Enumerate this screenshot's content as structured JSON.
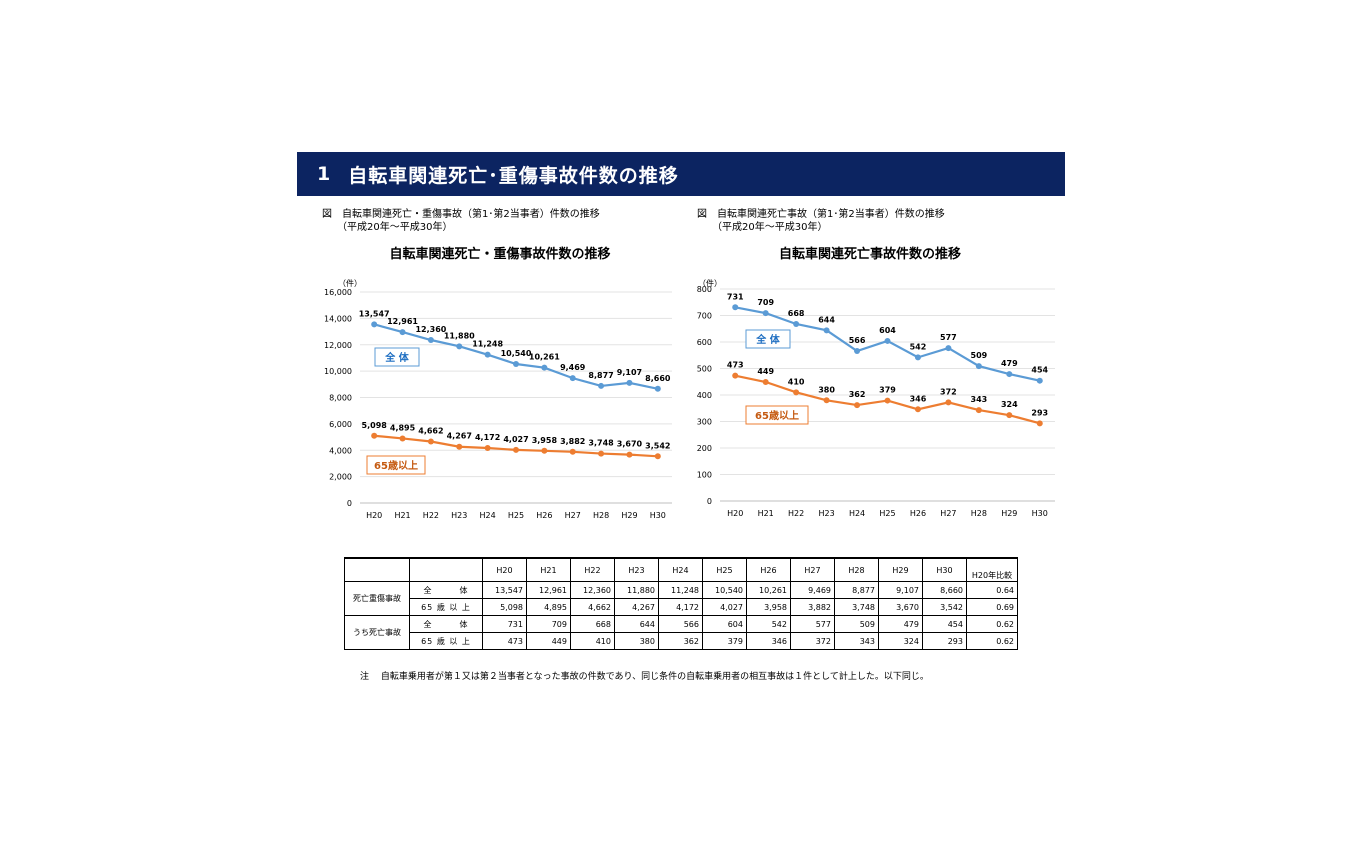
{
  "banner": {
    "number": "1",
    "title": "自転車関連死亡･重傷事故件数の推移",
    "bg": "#0c2461"
  },
  "captions": [
    {
      "line1": "図　自転車関連死亡・重傷事故（第1･第2当事者）件数の推移",
      "line2": "（平成20年～平成30年）"
    },
    {
      "line1": "図　自転車関連死亡事故（第1･第2当事者）件数の推移",
      "line2": "（平成20年～平成30年）"
    }
  ],
  "colors": {
    "blue": "#5b9bd5",
    "orange": "#ed7d31",
    "blue_label": "#1f6fc2",
    "orange_label": "#c55a11"
  },
  "chart_data": [
    {
      "type": "line",
      "title": "自転車関連死亡・重傷事故件数の推移",
      "ylabel": "（件）",
      "categories": [
        "H20",
        "H21",
        "H22",
        "H23",
        "H24",
        "H25",
        "H26",
        "H27",
        "H28",
        "H29",
        "H30"
      ],
      "ylim": [
        0,
        16000
      ],
      "yticks": [
        "0",
        "2,000",
        "4,000",
        "6,000",
        "8,000",
        "10,000",
        "12,000",
        "14,000",
        "16,000"
      ],
      "grid": true,
      "series": [
        {
          "name": "全 体",
          "values": [
            13547,
            12961,
            12360,
            11880,
            11248,
            10540,
            10261,
            9469,
            8877,
            9107,
            8660
          ],
          "labels": [
            "13,547",
            "12,961",
            "12,360",
            "11,880",
            "11,248",
            "10,540",
            "10,261",
            "9,469",
            "8,877",
            "9,107",
            "8,660"
          ]
        },
        {
          "name": "65歳以上",
          "values": [
            5098,
            4895,
            4662,
            4267,
            4172,
            4027,
            3958,
            3882,
            3748,
            3670,
            3542
          ],
          "labels": [
            "5,098",
            "4,895",
            "4,662",
            "4,267",
            "4,172",
            "4,027",
            "3,958",
            "3,882",
            "3,748",
            "3,670",
            "3,542"
          ]
        }
      ]
    },
    {
      "type": "line",
      "title": "自転車関連死亡事故件数の推移",
      "ylabel": "（件）",
      "categories": [
        "H20",
        "H21",
        "H22",
        "H23",
        "H24",
        "H25",
        "H26",
        "H27",
        "H28",
        "H29",
        "H30"
      ],
      "ylim": [
        0,
        800
      ],
      "yticks": [
        "0",
        "100",
        "200",
        "300",
        "400",
        "500",
        "600",
        "700",
        "800"
      ],
      "grid": true,
      "series": [
        {
          "name": "全 体",
          "values": [
            731,
            709,
            668,
            644,
            566,
            604,
            542,
            577,
            509,
            479,
            454
          ],
          "labels": [
            "731",
            "709",
            "668",
            "644",
            "566",
            "604",
            "542",
            "577",
            "509",
            "479",
            "454"
          ]
        },
        {
          "name": "65歳以上",
          "values": [
            473,
            449,
            410,
            380,
            362,
            379,
            346,
            372,
            343,
            324,
            293
          ],
          "labels": [
            "473",
            "449",
            "410",
            "380",
            "362",
            "379",
            "346",
            "372",
            "343",
            "324",
            "293"
          ]
        }
      ]
    }
  ],
  "table": {
    "years": [
      "H20",
      "H21",
      "H22",
      "H23",
      "H24",
      "H25",
      "H26",
      "H27",
      "H28",
      "H29",
      "H30"
    ],
    "ratio_header": "H20年比較",
    "groups": [
      {
        "name": "死亡重傷事故",
        "rows": [
          {
            "label": "全　　　体",
            "values": [
              "13,547",
              "12,961",
              "12,360",
              "11,880",
              "11,248",
              "10,540",
              "10,261",
              "9,469",
              "8,877",
              "9,107",
              "8,660"
            ],
            "ratio": "0.64"
          },
          {
            "label": "65 歳 以 上",
            "values": [
              "5,098",
              "4,895",
              "4,662",
              "4,267",
              "4,172",
              "4,027",
              "3,958",
              "3,882",
              "3,748",
              "3,670",
              "3,542"
            ],
            "ratio": "0.69"
          }
        ]
      },
      {
        "name": "うち死亡事故",
        "rows": [
          {
            "label": "全　　　体",
            "values": [
              "731",
              "709",
              "668",
              "644",
              "566",
              "604",
              "542",
              "577",
              "509",
              "479",
              "454"
            ],
            "ratio": "0.62"
          },
          {
            "label": "65 歳 以 上",
            "values": [
              "473",
              "449",
              "410",
              "380",
              "362",
              "379",
              "346",
              "372",
              "343",
              "324",
              "293"
            ],
            "ratio": "0.62"
          }
        ]
      }
    ]
  },
  "note": "注　 自転車乗用者が第１又は第２当事者となった事故の件数であり、同じ条件の自転車乗用者の相互事故は１件として計上した。以下同じ。"
}
